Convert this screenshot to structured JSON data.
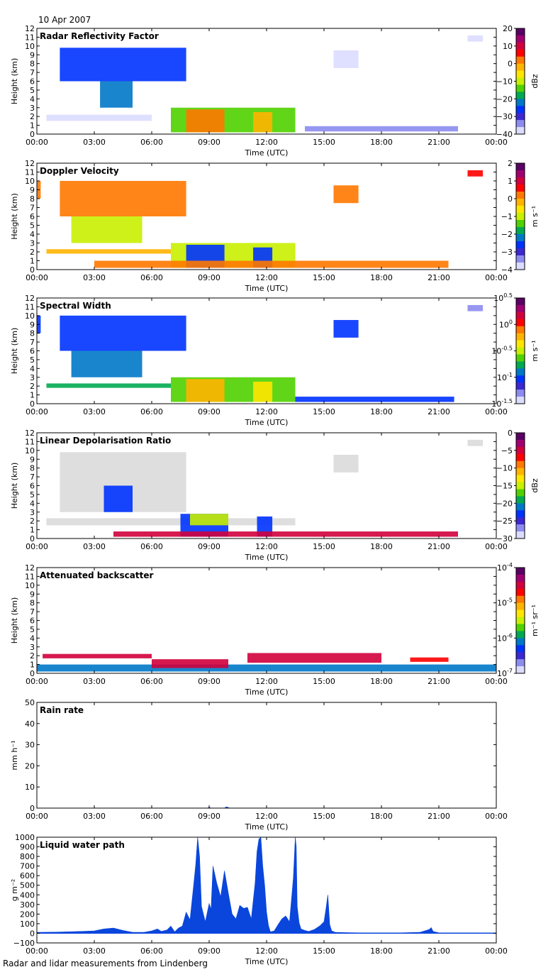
{
  "header": {
    "date": "10 Apr 2007"
  },
  "footer": {
    "caption": "Radar and lidar measurements from Lindenberg"
  },
  "time_ticks": [
    "00:00",
    "03:00",
    "06:00",
    "09:00",
    "12:00",
    "15:00",
    "18:00",
    "21:00",
    "00:00"
  ],
  "time_label": "Time (UTC)",
  "colormap": [
    "#5a0064",
    "#a00070",
    "#d2003c",
    "#ff0000",
    "#ff7800",
    "#ffb400",
    "#ffe600",
    "#c8f000",
    "#50d200",
    "#00aa50",
    "#0078c8",
    "#0032ff",
    "#3c28d2",
    "#8c8cf0",
    "#dcdcff"
  ],
  "chart_data": [
    {
      "type": "heatmap",
      "title": "Radar Reflectivity Factor",
      "ylabel": "Height (km)",
      "xlabel": "Time (UTC)",
      "xlim": [
        0,
        24
      ],
      "ylim": [
        0,
        12
      ],
      "yticks": [
        "0",
        "1",
        "2",
        "3",
        "4",
        "5",
        "6",
        "7",
        "8",
        "9",
        "10",
        "11",
        "12"
      ],
      "colorbar": {
        "ticks": [
          "20",
          "10",
          "0",
          "−10",
          "−20",
          "−30",
          "−40"
        ],
        "unit": "dBz",
        "range": [
          -40,
          20
        ]
      },
      "regions": [
        {
          "t0": 1.2,
          "t1": 7.8,
          "h0": 6.0,
          "h1": 9.8,
          "value": -25
        },
        {
          "t0": 3.3,
          "t1": 5.0,
          "h0": 3.0,
          "h1": 6.0,
          "value": -22
        },
        {
          "t0": 7.0,
          "t1": 13.5,
          "h0": 0.2,
          "h1": 3.0,
          "value": -15
        },
        {
          "t0": 7.8,
          "t1": 9.8,
          "h0": 0.2,
          "h1": 2.8,
          "value": 5
        },
        {
          "t0": 11.3,
          "t1": 12.3,
          "h0": 0.2,
          "h1": 2.5,
          "value": 0
        },
        {
          "t0": 0.5,
          "t1": 6.0,
          "h0": 1.5,
          "h1": 2.2,
          "value": -38
        },
        {
          "t0": 14.0,
          "t1": 22.0,
          "h0": 0.3,
          "h1": 0.9,
          "value": -36
        },
        {
          "t0": 15.5,
          "t1": 16.8,
          "h0": 7.5,
          "h1": 9.5,
          "value": -38
        },
        {
          "t0": 22.5,
          "t1": 23.3,
          "h0": 10.5,
          "h1": 11.2,
          "value": -38
        }
      ]
    },
    {
      "type": "heatmap",
      "title": "Doppler Velocity",
      "ylabel": "Height (km)",
      "xlabel": "Time (UTC)",
      "xlim": [
        0,
        24
      ],
      "ylim": [
        0,
        12
      ],
      "yticks": [
        "0",
        "1",
        "2",
        "3",
        "4",
        "5",
        "6",
        "7",
        "8",
        "9",
        "10",
        "11",
        "12"
      ],
      "colorbar": {
        "ticks": [
          "2",
          "1",
          "0",
          "−1",
          "−2",
          "−3",
          "−4"
        ],
        "unit": "m s⁻¹",
        "range": [
          -4,
          2
        ]
      },
      "regions": [
        {
          "t0": 1.2,
          "t1": 7.8,
          "h0": 6.0,
          "h1": 10.0,
          "value": 0.3
        },
        {
          "t0": 0.0,
          "t1": 0.2,
          "h0": 8.0,
          "h1": 10.0,
          "value": 0.5
        },
        {
          "t0": 1.8,
          "t1": 5.5,
          "h0": 3.0,
          "h1": 6.0,
          "value": -0.8
        },
        {
          "t0": 0.5,
          "t1": 7.0,
          "h0": 1.8,
          "h1": 2.3,
          "value": 0.0
        },
        {
          "t0": 7.0,
          "t1": 13.5,
          "h0": 0.2,
          "h1": 3.0,
          "value": -1.0
        },
        {
          "t0": 7.8,
          "t1": 9.8,
          "h0": 0.2,
          "h1": 2.8,
          "value": -2.8
        },
        {
          "t0": 11.3,
          "t1": 12.3,
          "h0": 0.2,
          "h1": 2.5,
          "value": -2.5
        },
        {
          "t0": 3.0,
          "t1": 21.5,
          "h0": 0.2,
          "h1": 1.0,
          "value": 0.5
        },
        {
          "t0": 15.5,
          "t1": 16.8,
          "h0": 7.5,
          "h1": 9.5,
          "value": 0.5
        },
        {
          "t0": 22.5,
          "t1": 23.3,
          "h0": 10.5,
          "h1": 11.2,
          "value": 0.6
        }
      ]
    },
    {
      "type": "heatmap",
      "title": "Spectral Width",
      "ylabel": "Height (km)",
      "xlabel": "Time (UTC)",
      "xlim": [
        0,
        24
      ],
      "ylim": [
        0,
        12
      ],
      "yticks": [
        "0",
        "1",
        "2",
        "3",
        "4",
        "5",
        "6",
        "7",
        "8",
        "9",
        "10",
        "11",
        "12"
      ],
      "colorbar": {
        "ticks": [
          "10^0.5",
          "10^0",
          "10^-0.5",
          "10^-1",
          "10^-1.5"
        ],
        "unit": "m s⁻¹",
        "range": [
          -1.5,
          0.5
        ]
      },
      "regions": [
        {
          "t0": 1.2,
          "t1": 7.8,
          "h0": 6.0,
          "h1": 10.0,
          "value": -1.1
        },
        {
          "t0": 0.0,
          "t1": 0.2,
          "h0": 8.0,
          "h1": 10.0,
          "value": -1.1
        },
        {
          "t0": 1.8,
          "t1": 5.5,
          "h0": 3.0,
          "h1": 6.0,
          "value": -0.9
        },
        {
          "t0": 0.5,
          "t1": 7.0,
          "h0": 1.8,
          "h1": 2.3,
          "value": -0.8
        },
        {
          "t0": 7.0,
          "t1": 13.5,
          "h0": 0.2,
          "h1": 3.0,
          "value": -0.6
        },
        {
          "t0": 7.8,
          "t1": 9.8,
          "h0": 0.2,
          "h1": 2.8,
          "value": -0.2
        },
        {
          "t0": 11.3,
          "t1": 12.3,
          "h0": 0.2,
          "h1": 2.5,
          "value": -0.4
        },
        {
          "t0": 13.5,
          "t1": 21.8,
          "h0": 0.2,
          "h1": 0.8,
          "value": -1.1
        },
        {
          "t0": 15.5,
          "t1": 16.8,
          "h0": 7.5,
          "h1": 9.5,
          "value": -1.1
        },
        {
          "t0": 22.5,
          "t1": 23.3,
          "h0": 10.5,
          "h1": 11.2,
          "value": -1.3
        }
      ]
    },
    {
      "type": "heatmap",
      "title": "Linear Depolarisation Ratio",
      "ylabel": "Height (km)",
      "xlabel": "Time (UTC)",
      "xlim": [
        0,
        24
      ],
      "ylim": [
        0,
        12
      ],
      "yticks": [
        "0",
        "1",
        "2",
        "3",
        "4",
        "5",
        "6",
        "7",
        "8",
        "9",
        "10",
        "11",
        "12"
      ],
      "colorbar": {
        "ticks": [
          "0",
          "−5",
          "−10",
          "−15",
          "−20",
          "−25",
          "−30"
        ],
        "unit": "dBz",
        "range": [
          -30,
          0
        ]
      },
      "regions": [
        {
          "t0": 1.2,
          "t1": 7.8,
          "h0": 3.0,
          "h1": 9.8,
          "value": -40
        },
        {
          "t0": 0.5,
          "t1": 13.5,
          "h0": 1.5,
          "h1": 2.3,
          "value": -40
        },
        {
          "t0": 3.5,
          "t1": 5.0,
          "h0": 3.0,
          "h1": 6.0,
          "value": -24
        },
        {
          "t0": 7.5,
          "t1": 10.0,
          "h0": 0.2,
          "h1": 2.8,
          "value": -24
        },
        {
          "t0": 8.0,
          "t1": 10.0,
          "h0": 1.5,
          "h1": 2.8,
          "value": -15
        },
        {
          "t0": 11.5,
          "t1": 12.3,
          "h0": 0.2,
          "h1": 2.5,
          "value": -24
        },
        {
          "t0": 4.0,
          "t1": 22.0,
          "h0": 0.2,
          "h1": 0.8,
          "value": -4
        },
        {
          "t0": 15.5,
          "t1": 16.8,
          "h0": 7.5,
          "h1": 9.5,
          "value": -40
        },
        {
          "t0": 22.5,
          "t1": 23.3,
          "h0": 10.5,
          "h1": 11.2,
          "value": -40
        }
      ]
    },
    {
      "type": "heatmap",
      "title": "Attenuated backscatter",
      "ylabel": "Height (km)",
      "xlabel": "Time (UTC)",
      "xlim": [
        0,
        24
      ],
      "ylim": [
        0,
        12
      ],
      "yticks": [
        "0",
        "1",
        "2",
        "3",
        "4",
        "5",
        "6",
        "7",
        "8",
        "9",
        "10",
        "11",
        "12"
      ],
      "colorbar": {
        "ticks": [
          "10^-4",
          "10^-5",
          "10^-6",
          "10^-7"
        ],
        "unit": "m⁻¹ sr⁻¹",
        "range": [
          -7,
          -4
        ]
      },
      "regions": [
        {
          "t0": 0.0,
          "t1": 24.0,
          "h0": 0.2,
          "h1": 1.0,
          "value": -6.2
        },
        {
          "t0": 0.3,
          "t1": 6.0,
          "h0": 1.7,
          "h1": 2.2,
          "value": -4.4
        },
        {
          "t0": 6.0,
          "t1": 10.0,
          "h0": 0.6,
          "h1": 1.6,
          "value": -4.5
        },
        {
          "t0": 11.0,
          "t1": 18.0,
          "h0": 1.2,
          "h1": 2.3,
          "value": -4.4
        },
        {
          "t0": 19.5,
          "t1": 21.5,
          "h0": 1.3,
          "h1": 1.8,
          "value": -4.6
        }
      ]
    },
    {
      "type": "area",
      "title": "Rain rate",
      "ylabel": "mm h⁻¹",
      "xlabel": "Time (UTC)",
      "xlim": [
        0,
        24
      ],
      "ylim": [
        0,
        50
      ],
      "yticks": [
        "0",
        "10",
        "20",
        "30",
        "40",
        "50"
      ],
      "x": [
        0,
        8.9,
        9.0,
        9.1,
        9.8,
        9.9,
        10.0,
        10.1,
        24
      ],
      "y": [
        0,
        0,
        0.4,
        0,
        0,
        0.6,
        0.3,
        0,
        0
      ]
    },
    {
      "type": "area",
      "title": "Liquid water path",
      "ylabel": "g m⁻²",
      "xlabel": "Time (UTC)",
      "xlim": [
        0,
        24
      ],
      "ylim": [
        -100,
        1000
      ],
      "yticks": [
        "−100",
        "0",
        "100",
        "200",
        "300",
        "400",
        "500",
        "600",
        "700",
        "800",
        "900",
        "1000"
      ],
      "x": [
        0,
        1.0,
        2.0,
        3.0,
        3.5,
        4.0,
        4.5,
        5.0,
        5.6,
        6.0,
        6.3,
        6.5,
        6.8,
        7.0,
        7.2,
        7.4,
        7.6,
        7.8,
        8.0,
        8.2,
        8.3,
        8.4,
        8.5,
        8.6,
        8.8,
        9.0,
        9.1,
        9.2,
        9.4,
        9.6,
        9.8,
        10.0,
        10.2,
        10.4,
        10.6,
        10.8,
        11.0,
        11.2,
        11.4,
        11.5,
        11.6,
        11.7,
        11.8,
        11.9,
        12.0,
        12.1,
        12.2,
        12.4,
        12.6,
        12.8,
        13.0,
        13.2,
        13.4,
        13.5,
        13.55,
        13.6,
        13.7,
        13.8,
        14.0,
        14.2,
        14.5,
        14.8,
        15.0,
        15.1,
        15.2,
        15.3,
        15.4,
        15.6,
        16.0,
        17.0,
        18.0,
        19.0,
        20.0,
        20.5,
        20.6,
        20.7,
        21.0,
        22.0,
        23.0,
        24.0
      ],
      "y": [
        10,
        12,
        18,
        25,
        45,
        55,
        30,
        10,
        10,
        25,
        45,
        20,
        35,
        75,
        15,
        55,
        75,
        220,
        140,
        520,
        720,
        1000,
        800,
        280,
        120,
        310,
        250,
        700,
        520,
        380,
        650,
        420,
        200,
        150,
        290,
        260,
        270,
        150,
        520,
        850,
        980,
        1000,
        700,
        500,
        220,
        80,
        15,
        25,
        90,
        150,
        180,
        120,
        580,
        1000,
        900,
        280,
        110,
        45,
        30,
        20,
        40,
        80,
        120,
        250,
        400,
        90,
        25,
        10,
        8,
        5,
        5,
        5,
        10,
        40,
        60,
        20,
        5,
        5,
        5,
        5
      ]
    }
  ]
}
